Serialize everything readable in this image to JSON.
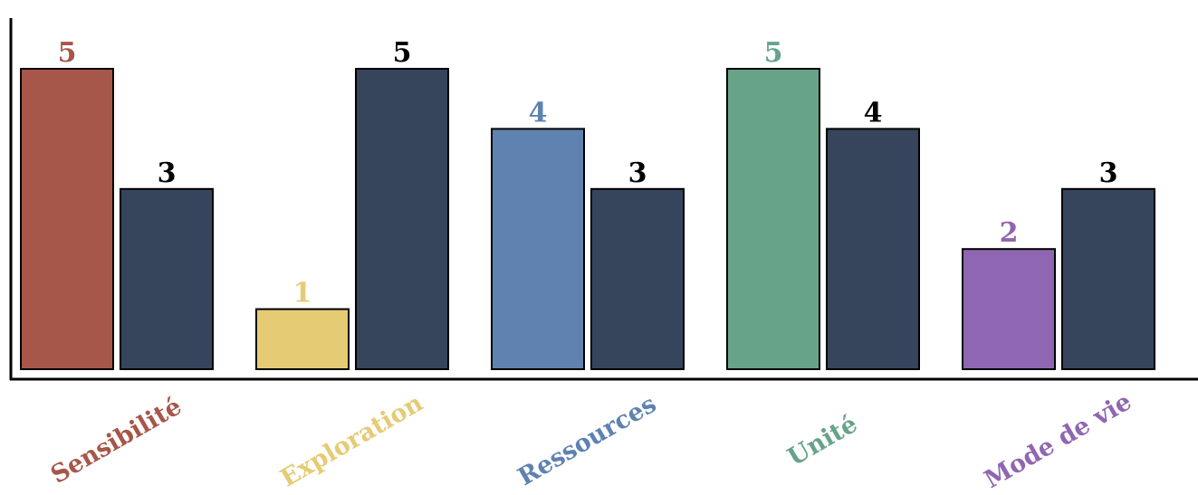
{
  "chart_data": {
    "type": "bar",
    "title": "",
    "xlabel": "",
    "ylabel": "",
    "ylim": [
      0,
      5
    ],
    "grid": false,
    "legend": "none",
    "categories": [
      "Sensibilité",
      "Exploration",
      "Ressources",
      "Unité",
      "Mode de vie"
    ],
    "category_colors": [
      "#a65749",
      "#e5cb74",
      "#5f82b1",
      "#66a389",
      "#8f66b2"
    ],
    "series": [
      {
        "values": [
          5,
          1,
          4,
          5,
          2
        ],
        "color": "per-category"
      },
      {
        "values": [
          3,
          5,
          3,
          4,
          3
        ],
        "color": "#36455c",
        "label_color": "#000000"
      }
    ]
  }
}
